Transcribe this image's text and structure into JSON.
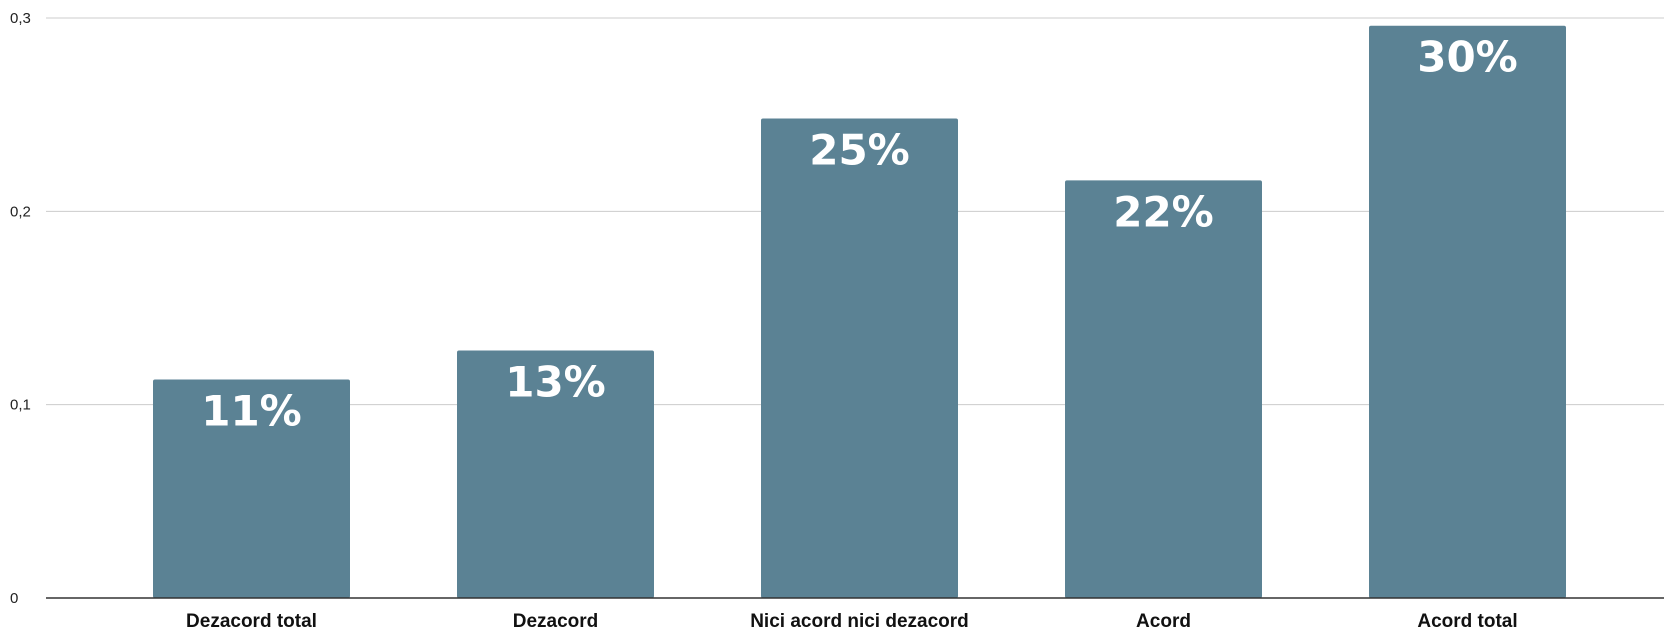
{
  "chart_data": {
    "type": "bar",
    "title": "",
    "xlabel": "",
    "ylabel": "",
    "categories": [
      "Dezacord total",
      "Dezacord",
      "Nici acord nici dezacord",
      "Acord",
      "Acord total"
    ],
    "values": [
      0.113,
      0.128,
      0.248,
      0.216,
      0.296
    ],
    "data_labels": [
      "11%",
      "13%",
      "25%",
      "22%",
      "30%"
    ],
    "ylim": [
      0,
      0.3
    ],
    "yticks": [
      0,
      0.1,
      0.2,
      0.3
    ],
    "ytick_labels": [
      "0",
      "0,1",
      "0,2",
      "0,3"
    ],
    "grid": true,
    "legend": "none",
    "bar_color": "#5b8294",
    "grid_color": "#cccccc",
    "axis_color": "#333333"
  }
}
